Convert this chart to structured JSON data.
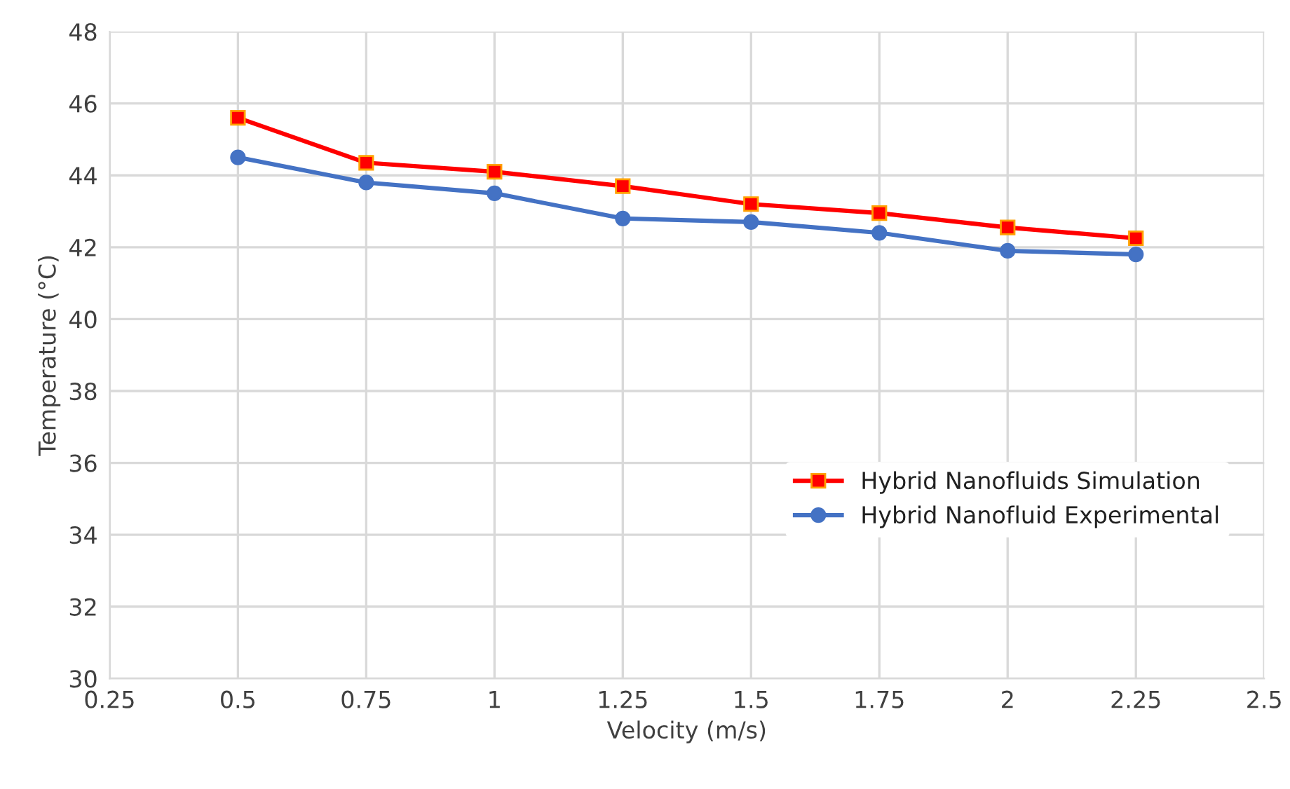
{
  "chart_data": {
    "type": "line",
    "xlabel": "Velocity (m/s)",
    "ylabel": "Temperature (°C)",
    "x": [
      0.5,
      0.75,
      1,
      1.25,
      1.5,
      1.75,
      2,
      2.25
    ],
    "series": [
      {
        "name": "Hybrid Nanofluids Simulation",
        "color": "#ff0000",
        "marker": "square",
        "values": [
          45.6,
          44.35,
          44.1,
          43.7,
          43.2,
          42.95,
          42.55,
          42.25
        ]
      },
      {
        "name": "Hybrid Nanofluid Experimental",
        "color": "#4472c4",
        "marker": "circle",
        "values": [
          44.5,
          43.8,
          43.5,
          42.8,
          42.7,
          42.4,
          41.9,
          41.8
        ]
      }
    ],
    "xlim": [
      0.25,
      2.5
    ],
    "xticks": [
      0.25,
      0.5,
      0.75,
      1,
      1.25,
      1.5,
      1.75,
      2,
      2.25,
      2.5
    ],
    "ylim": [
      30,
      48
    ],
    "yticks": [
      30,
      32,
      34,
      36,
      38,
      40,
      42,
      44,
      46,
      48
    ],
    "grid": true,
    "legend": "bottom right",
    "line_style": "solid"
  }
}
